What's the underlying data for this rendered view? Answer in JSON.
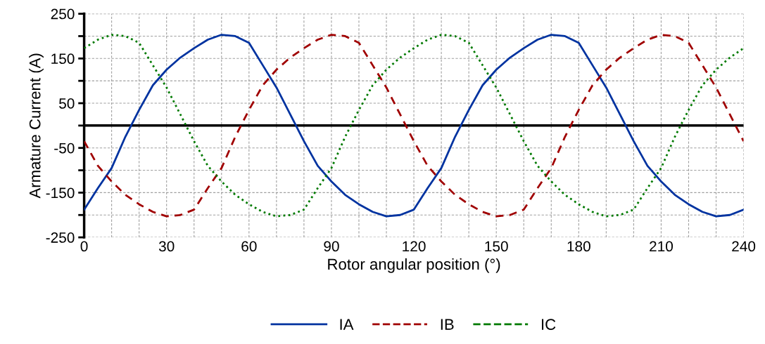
{
  "chart_data": {
    "type": "line",
    "xlabel": "Rotor angular position (°)",
    "ylabel": "Armature Current (A)",
    "x": [
      0,
      5,
      10,
      15,
      20,
      25,
      30,
      35,
      40,
      45,
      50,
      55,
      60,
      65,
      70,
      75,
      80,
      85,
      90,
      95,
      100,
      105,
      110,
      115,
      120,
      125,
      130,
      135,
      140,
      145,
      150,
      155,
      160,
      165,
      170,
      175,
      180,
      185,
      190,
      195,
      200,
      205,
      210,
      215,
      220,
      225,
      230,
      235,
      240
    ],
    "series": [
      {
        "name": "IA",
        "color": "#0033a0",
        "line_style": "solid",
        "values": [
          -188,
          -140,
          -95,
          -25,
          35,
          90,
          125,
          152,
          173,
          192,
          203,
          200,
          185,
          135,
          85,
          25,
          -35,
          -90,
          -125,
          -155,
          -176,
          -193,
          -203,
          -200,
          -188,
          -140,
          -95,
          -25,
          35,
          90,
          125,
          152,
          173,
          192,
          203,
          200,
          185,
          135,
          85,
          25,
          -35,
          -90,
          -125,
          -155,
          -176,
          -193,
          -203,
          -200,
          -188
        ]
      },
      {
        "name": "IB",
        "color": "#a00000",
        "line_style": "dashed",
        "values": [
          -35,
          -90,
          -125,
          -155,
          -176,
          -193,
          -203,
          -200,
          -188,
          -140,
          -95,
          -25,
          35,
          90,
          125,
          152,
          173,
          192,
          203,
          200,
          185,
          135,
          85,
          25,
          -35,
          -90,
          -125,
          -155,
          -176,
          -193,
          -203,
          -200,
          -188,
          -140,
          -95,
          -25,
          35,
          90,
          125,
          152,
          173,
          192,
          203,
          200,
          185,
          135,
          85,
          25,
          -35
        ]
      },
      {
        "name": "IC",
        "color": "#007a00",
        "line_style": "dotted",
        "values": [
          173,
          192,
          203,
          200,
          185,
          135,
          85,
          25,
          -35,
          -90,
          -125,
          -155,
          -176,
          -193,
          -203,
          -200,
          -188,
          -140,
          -95,
          -25,
          35,
          90,
          125,
          152,
          173,
          192,
          203,
          200,
          185,
          135,
          85,
          25,
          -35,
          -90,
          -125,
          -155,
          -176,
          -193,
          -203,
          -200,
          -188,
          -140,
          -95,
          -25,
          35,
          90,
          125,
          152,
          173
        ]
      }
    ],
    "xlim": [
      0,
      240
    ],
    "xticks": [
      0,
      {
        "value": 10,
        "label": null
      },
      {
        "value": 20,
        "label": null
      },
      30,
      {
        "value": 40,
        "label": null
      },
      {
        "value": 50,
        "label": null
      },
      60,
      {
        "value": 70,
        "label": null
      },
      {
        "value": 80,
        "label": null
      },
      90,
      {
        "value": 100,
        "label": null
      },
      {
        "value": 110,
        "label": null
      },
      120,
      {
        "value": 130,
        "label": null
      },
      {
        "value": 140,
        "label": null
      },
      150,
      {
        "value": 160,
        "label": null
      },
      {
        "value": 170,
        "label": null
      },
      180,
      {
        "value": 190,
        "label": null
      },
      {
        "value": 200,
        "label": null
      },
      210,
      {
        "value": 220,
        "label": null
      },
      {
        "value": 230,
        "label": null
      },
      240
    ],
    "ylim": [
      -250,
      250
    ],
    "yticks": [
      250,
      {
        "value": 200,
        "label": null
      },
      150,
      {
        "value": 100,
        "label": null
      },
      50,
      {
        "value": 0,
        "label": null
      },
      -50,
      {
        "value": -100,
        "label": null
      },
      -150,
      {
        "value": -200,
        "label": null
      },
      -250
    ],
    "ref_lines": [
      {
        "axis": "y",
        "value": 0,
        "color": "#000000"
      }
    ],
    "grid": true,
    "legend": "bottom",
    "marker": "none"
  }
}
